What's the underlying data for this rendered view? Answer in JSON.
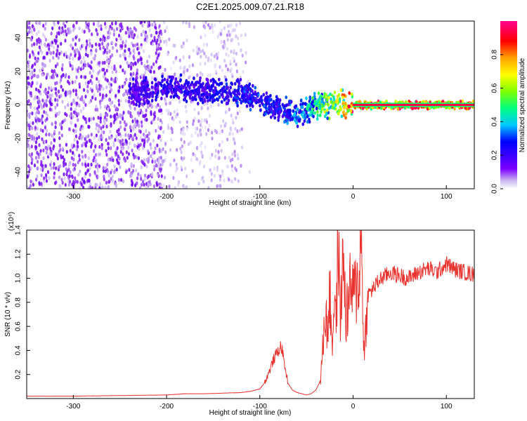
{
  "title": "C2E1.2025.009.07.21.R18",
  "chart_data": [
    {
      "type": "heatmap",
      "xlabel": "Height of straight line (km)",
      "ylabel": "Frequency (Hz)",
      "xlim": [
        -350,
        130
      ],
      "ylim": [
        -50,
        50
      ],
      "xticks": [
        -300,
        -200,
        -100,
        0,
        100
      ],
      "yticks": [
        -40,
        -20,
        0,
        20,
        40
      ],
      "colorbar": {
        "label": "Normalized spectral amplitude",
        "range": [
          0,
          1
        ],
        "ticks": [
          "0.0",
          "0.2",
          "0.4",
          "0.6",
          "0.8"
        ],
        "colormap": [
          "#ffffff",
          "#c9b4f2",
          "#7a00ff",
          "#3a00ff",
          "#0000ff",
          "#00c8ff",
          "#00ff80",
          "#7fff00",
          "#ffff00",
          "#ffa000",
          "#ff0000",
          "#ff0090"
        ]
      },
      "ridge": [
        {
          "x": -230,
          "y": 8,
          "amplitude": 0.3
        },
        {
          "x": -200,
          "y": 10,
          "amplitude": 0.35
        },
        {
          "x": -160,
          "y": 8,
          "amplitude": 0.35
        },
        {
          "x": -120,
          "y": 7,
          "amplitude": 0.4
        },
        {
          "x": -100,
          "y": 2,
          "amplitude": 0.4
        },
        {
          "x": -80,
          "y": -2,
          "amplitude": 0.4
        },
        {
          "x": -60,
          "y": -5,
          "amplitude": 0.45
        },
        {
          "x": -40,
          "y": -1,
          "amplitude": 0.6
        },
        {
          "x": -20,
          "y": 1,
          "amplitude": 0.75
        },
        {
          "x": 0,
          "y": 0,
          "amplitude": 0.95
        },
        {
          "x": 60,
          "y": 0,
          "amplitude": 0.95
        },
        {
          "x": 130,
          "y": 0,
          "amplitude": 0.95
        }
      ],
      "noise_region": {
        "x_range": [
          -350,
          -110
        ],
        "y_range": [
          -50,
          50
        ]
      }
    },
    {
      "type": "line",
      "xlabel": "Height of straight line (km)",
      "ylabel": "SNR (10 * v/v)",
      "y_multiplier": "(x10⁴)",
      "xlim": [
        -350,
        130
      ],
      "ylim": [
        0,
        1.4
      ],
      "xticks": [
        -300,
        -200,
        -100,
        0,
        100
      ],
      "yticks": [
        "0.2",
        "0.4",
        "0.6",
        "0.8",
        "1.0",
        "1.2",
        "1.4"
      ],
      "color": "#e8322e",
      "series": [
        {
          "x": [
            -350,
            -300,
            -250,
            -200,
            -180,
            -160,
            -140,
            -120,
            -110,
            -100,
            -95,
            -90,
            -85,
            -80,
            -77,
            -75,
            -70,
            -65,
            -60,
            -55,
            -50,
            -45,
            -40,
            -35,
            -32,
            -30,
            -28,
            -25,
            -22,
            -20,
            -18,
            -16,
            -14,
            -12,
            -10,
            -8,
            -5,
            -2,
            0,
            3,
            6,
            9,
            12,
            15,
            20,
            25,
            30,
            35,
            40,
            50,
            60,
            70,
            80,
            90,
            100,
            110,
            120,
            130
          ],
          "y": [
            0.02,
            0.02,
            0.025,
            0.03,
            0.04,
            0.04,
            0.045,
            0.05,
            0.06,
            0.08,
            0.13,
            0.22,
            0.33,
            0.4,
            0.44,
            0.35,
            0.13,
            0.07,
            0.05,
            0.04,
            0.03,
            0.04,
            0.07,
            0.15,
            0.45,
            0.8,
            0.55,
            0.85,
            0.45,
            0.95,
            0.6,
            1.38,
            0.7,
            0.9,
            1.25,
            0.65,
            0.8,
            0.95,
            0.85,
            0.9,
            1.0,
            1.32,
            0.3,
            0.85,
            0.9,
            0.95,
            1.0,
            1.02,
            1.05,
            1.02,
            1.0,
            1.05,
            1.08,
            1.05,
            1.12,
            1.07,
            1.05,
            1.03
          ]
        }
      ]
    }
  ]
}
